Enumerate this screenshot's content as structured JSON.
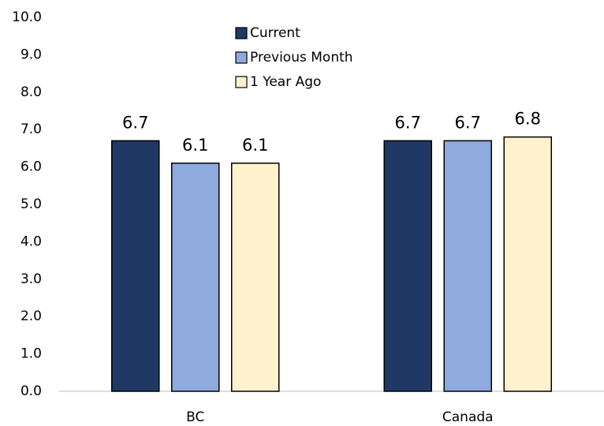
{
  "chart_data": {
    "type": "bar",
    "categories": [
      "BC",
      "Canada"
    ],
    "series": [
      {
        "name": "Current",
        "color": "#203864",
        "values": [
          6.7,
          6.7
        ]
      },
      {
        "name": "Previous Month",
        "color": "#8faadc",
        "values": [
          6.1,
          6.7
        ]
      },
      {
        "name": "1 Year Ago",
        "color": "#fff2cc",
        "values": [
          6.1,
          6.8
        ]
      }
    ],
    "ylim": [
      0,
      10
    ],
    "yticks": [
      {
        "value": 0,
        "label": "0.0"
      },
      {
        "value": 1,
        "label": "1.0"
      },
      {
        "value": 2,
        "label": "2.0"
      },
      {
        "value": 3,
        "label": "3.0"
      },
      {
        "value": 4,
        "label": "4.0"
      },
      {
        "value": 5,
        "label": "5.0"
      },
      {
        "value": 6,
        "label": "6.0"
      },
      {
        "value": 7,
        "label": "7.0"
      },
      {
        "value": 8,
        "label": "8.0"
      },
      {
        "value": 9,
        "label": "9.0"
      },
      {
        "value": 10,
        "label": "10.0"
      }
    ],
    "grid": false,
    "legend": "top"
  }
}
